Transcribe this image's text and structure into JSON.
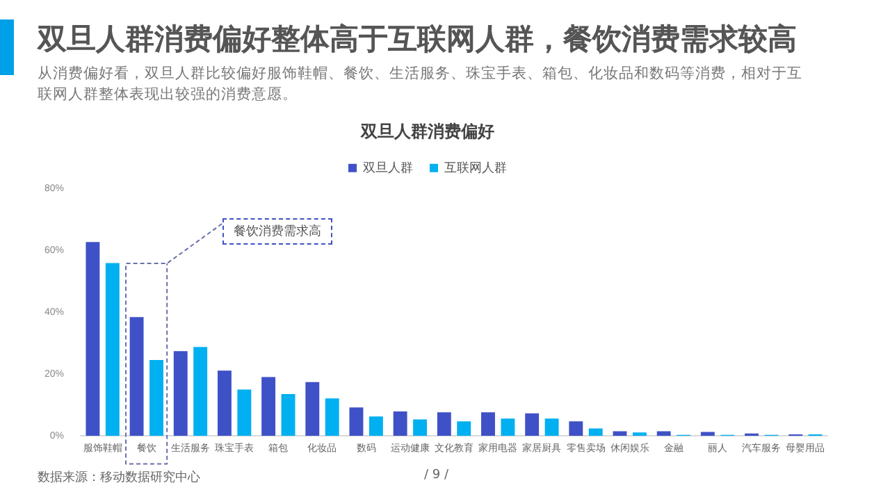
{
  "chart_data": {
    "type": "bar",
    "title": "双旦人群消费偏好整体高于互联网人群，餐饮消费需求较高",
    "subtitle": "从消费偏好看，双旦人群比较偏好服饰鞋帽、餐饮、生活服务、珠宝手表、箱包、化妆品和数码等消费，相对于互联网人群整体表现出较强的消费意愿。",
    "categories": [
      "服饰鞋帽",
      "餐饮",
      "生活服务",
      "珠宝手表",
      "箱包",
      "化妆品",
      "数码",
      "运动健康",
      "文化教育",
      "家用电器",
      "家居厨具",
      "零售卖场",
      "休闲娱乐",
      "金融",
      "丽人",
      "汽车服务",
      "母婴用品"
    ],
    "series": [
      {
        "name": "双旦人群",
        "color": "#3f51c6",
        "values": [
          62.6,
          38.4,
          27.4,
          21.1,
          19,
          17.4,
          9.2,
          7.9,
          7.6,
          7.6,
          7.3,
          4.7,
          1.5,
          1.5,
          1.3,
          0.8,
          0.5
        ]
      },
      {
        "name": "互联网人群",
        "color": "#00b0f0",
        "values": [
          55.8,
          24.5,
          28.7,
          15,
          13.5,
          12.1,
          6.3,
          5.3,
          4.7,
          5.6,
          5.6,
          2.4,
          1.1,
          0.3,
          0.3,
          0.3,
          0.5
        ]
      }
    ],
    "ylim": [
      0,
      80
    ],
    "yticks": [
      {
        "value": 0,
        "label": "0%"
      },
      {
        "value": 20,
        "label": "20%"
      },
      {
        "value": 40,
        "label": "40%"
      },
      {
        "value": 60,
        "label": "60%"
      },
      {
        "value": 80,
        "label": "80%"
      }
    ],
    "grid": false,
    "legend": "top",
    "annotations": [
      "双旦人群消费偏好",
      "餐饮消费需求高",
      "数据来源：移动数据研究中心",
      "/ 9 /"
    ]
  }
}
